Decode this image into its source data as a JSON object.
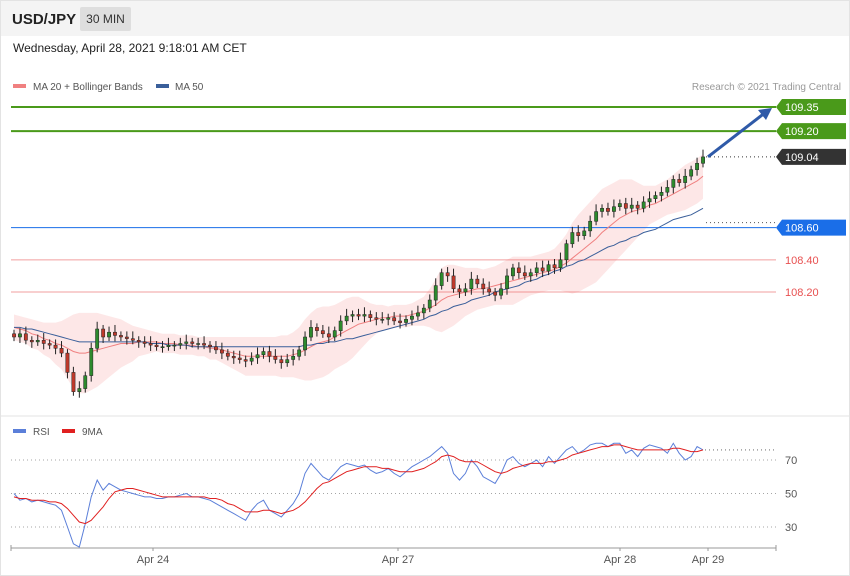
{
  "header": {
    "pair": "USD/JPY",
    "timeframe": "30 MIN",
    "datetime": "Wednesday, April 28, 2021 9:18:01 AM CET"
  },
  "legend": {
    "ma20_label": "MA 20 + Bollinger Bands",
    "ma50_label": "MA 50",
    "copyright": "Research © 2021 Trading Central",
    "ma20_color": "#f08080",
    "ma50_color": "#3a5f9a"
  },
  "rsi_legend": {
    "rsi_label": "RSI",
    "ma_label": "9MA",
    "rsi_color": "#5b7fd9",
    "ma_color": "#e02020"
  },
  "colors": {
    "up": "#2d8a2d",
    "down": "#c0392b",
    "resistance": "#4a9a1a",
    "support": "#e85050",
    "pivot": "#1a6ee8",
    "current": "#333333"
  },
  "chart_data": [
    {
      "type": "candlestick",
      "x_labels": [
        "Apr 24",
        "Apr 27",
        "Apr 28",
        "Apr 29"
      ],
      "ylim": [
        107.8,
        109.45
      ],
      "levels": [
        {
          "value": 109.35,
          "label": "109.35",
          "kind": "resistance"
        },
        {
          "value": 109.2,
          "label": "109.20",
          "kind": "resistance"
        },
        {
          "value": 109.04,
          "label": "109.04",
          "kind": "current"
        },
        {
          "value": 108.6,
          "label": "108.60",
          "kind": "pivot"
        },
        {
          "value": 108.4,
          "label": "108.40",
          "kind": "support"
        },
        {
          "value": 108.2,
          "label": "108.20",
          "kind": "support"
        }
      ],
      "close": [
        107.92,
        107.94,
        107.9,
        107.89,
        107.9,
        107.88,
        107.87,
        107.85,
        107.82,
        107.7,
        107.58,
        107.6,
        107.68,
        107.85,
        107.97,
        107.92,
        107.95,
        107.93,
        107.92,
        107.91,
        107.9,
        107.89,
        107.88,
        107.87,
        107.86,
        107.86,
        107.87,
        107.87,
        107.88,
        107.89,
        107.88,
        107.88,
        107.87,
        107.86,
        107.84,
        107.82,
        107.8,
        107.79,
        107.78,
        107.77,
        107.79,
        107.81,
        107.83,
        107.8,
        107.78,
        107.76,
        107.78,
        107.8,
        107.84,
        107.92,
        107.98,
        107.96,
        107.94,
        107.92,
        107.96,
        108.02,
        108.05,
        108.06,
        108.05,
        108.06,
        108.04,
        108.03,
        108.03,
        108.04,
        108.02,
        108.01,
        108.03,
        108.05,
        108.07,
        108.1,
        108.15,
        108.24,
        108.32,
        108.3,
        108.22,
        108.2,
        108.22,
        108.28,
        108.25,
        108.22,
        108.2,
        108.18,
        108.22,
        108.3,
        108.35,
        108.32,
        108.3,
        108.32,
        108.35,
        108.33,
        108.37,
        108.35,
        108.4,
        108.5,
        108.57,
        108.55,
        108.58,
        108.64,
        108.7,
        108.72,
        108.7,
        108.73,
        108.75,
        108.72,
        108.74,
        108.72,
        108.76,
        108.78,
        108.8,
        108.82,
        108.85,
        108.9,
        108.88,
        108.92,
        108.96,
        109.0,
        109.04
      ],
      "ma20": [
        107.98,
        107.97,
        107.96,
        107.94,
        107.93,
        107.91,
        107.9,
        107.88,
        107.87,
        107.85,
        107.83,
        107.82,
        107.82,
        107.83,
        107.84,
        107.85,
        107.86,
        107.87,
        107.88,
        107.88,
        107.88,
        107.89,
        107.89,
        107.89,
        107.89,
        107.88,
        107.88,
        107.88,
        107.87,
        107.87,
        107.87,
        107.86,
        107.86,
        107.85,
        107.85,
        107.84,
        107.83,
        107.82,
        107.81,
        107.8,
        107.8,
        107.8,
        107.8,
        107.8,
        107.8,
        107.8,
        107.8,
        107.81,
        107.82,
        107.84,
        107.86,
        107.88,
        107.89,
        107.9,
        107.92,
        107.94,
        107.96,
        107.98,
        108.0,
        108.01,
        108.02,
        108.03,
        108.04,
        108.04,
        108.05,
        108.05,
        108.05,
        108.06,
        108.07,
        108.08,
        108.1,
        108.12,
        108.15,
        108.17,
        108.18,
        108.19,
        108.2,
        108.21,
        108.22,
        108.22,
        108.23,
        108.24,
        108.25,
        108.26,
        108.27,
        108.28,
        108.29,
        108.3,
        108.31,
        108.32,
        108.33,
        108.34,
        108.36,
        108.38,
        108.41,
        108.44,
        108.47,
        108.5,
        108.53,
        108.57,
        108.6,
        108.63,
        108.66,
        108.68,
        108.7,
        108.71,
        108.72,
        108.74,
        108.75,
        108.77,
        108.79,
        108.81,
        108.83,
        108.85,
        108.87,
        108.89,
        108.92
      ],
      "ma50": [
        107.98,
        107.98,
        107.97,
        107.97,
        107.96,
        107.95,
        107.94,
        107.93,
        107.92,
        107.91,
        107.9,
        107.89,
        107.89,
        107.89,
        107.89,
        107.89,
        107.89,
        107.89,
        107.89,
        107.89,
        107.89,
        107.89,
        107.89,
        107.88,
        107.88,
        107.88,
        107.87,
        107.87,
        107.87,
        107.87,
        107.86,
        107.86,
        107.86,
        107.86,
        107.86,
        107.86,
        107.86,
        107.86,
        107.86,
        107.86,
        107.86,
        107.86,
        107.86,
        107.86,
        107.86,
        107.86,
        107.86,
        107.86,
        107.86,
        107.87,
        107.87,
        107.88,
        107.88,
        107.89,
        107.89,
        107.9,
        107.91,
        107.91,
        107.92,
        107.93,
        107.94,
        107.95,
        107.96,
        107.97,
        107.98,
        107.99,
        108.0,
        108.01,
        108.02,
        108.03,
        108.05,
        108.06,
        108.08,
        108.09,
        108.11,
        108.12,
        108.13,
        108.15,
        108.16,
        108.17,
        108.18,
        108.2,
        108.21,
        108.22,
        108.23,
        108.24,
        108.26,
        108.27,
        108.28,
        108.3,
        108.31,
        108.33,
        108.34,
        108.36,
        108.37,
        108.39,
        108.4,
        108.42,
        108.44,
        108.46,
        108.48,
        108.49,
        108.51,
        108.52,
        108.54,
        108.55,
        108.57,
        108.58,
        108.59,
        108.61,
        108.63,
        108.65,
        108.66,
        108.67,
        108.68,
        108.7,
        108.72
      ],
      "band_width": [
        0.08,
        0.08,
        0.08,
        0.09,
        0.09,
        0.1,
        0.11,
        0.13,
        0.15,
        0.19,
        0.23,
        0.25,
        0.25,
        0.24,
        0.23,
        0.21,
        0.19,
        0.17,
        0.15,
        0.13,
        0.11,
        0.09,
        0.08,
        0.07,
        0.06,
        0.06,
        0.06,
        0.06,
        0.06,
        0.06,
        0.06,
        0.06,
        0.06,
        0.07,
        0.07,
        0.08,
        0.09,
        0.1,
        0.11,
        0.12,
        0.12,
        0.12,
        0.12,
        0.12,
        0.12,
        0.13,
        0.13,
        0.14,
        0.16,
        0.19,
        0.21,
        0.22,
        0.22,
        0.21,
        0.2,
        0.2,
        0.2,
        0.19,
        0.17,
        0.14,
        0.11,
        0.09,
        0.08,
        0.07,
        0.07,
        0.07,
        0.07,
        0.07,
        0.08,
        0.09,
        0.12,
        0.16,
        0.2,
        0.2,
        0.19,
        0.17,
        0.15,
        0.14,
        0.13,
        0.12,
        0.12,
        0.12,
        0.13,
        0.14,
        0.15,
        0.14,
        0.13,
        0.12,
        0.12,
        0.12,
        0.12,
        0.13,
        0.15,
        0.18,
        0.22,
        0.24,
        0.25,
        0.26,
        0.27,
        0.27,
        0.26,
        0.25,
        0.24,
        0.22,
        0.2,
        0.17,
        0.14,
        0.12,
        0.11,
        0.11,
        0.11,
        0.12,
        0.13,
        0.14,
        0.14,
        0.14,
        0.14
      ]
    },
    {
      "type": "line",
      "title": "RSI",
      "yticks": [
        30,
        50,
        70
      ],
      "ylim": [
        10,
        85
      ],
      "rsi": [
        50,
        46,
        47,
        45,
        46,
        45,
        44,
        43,
        40,
        30,
        20,
        18,
        32,
        48,
        58,
        52,
        56,
        54,
        52,
        51,
        50,
        49,
        48,
        48,
        47,
        47,
        48,
        48,
        49,
        50,
        48,
        48,
        47,
        46,
        44,
        42,
        40,
        38,
        36,
        34,
        40,
        44,
        46,
        40,
        38,
        36,
        40,
        44,
        50,
        62,
        68,
        64,
        60,
        58,
        62,
        66,
        68,
        67,
        66,
        67,
        64,
        62,
        63,
        65,
        62,
        60,
        63,
        66,
        68,
        70,
        72,
        75,
        78,
        74,
        62,
        58,
        62,
        70,
        66,
        60,
        58,
        56,
        62,
        70,
        72,
        68,
        66,
        68,
        70,
        66,
        72,
        68,
        72,
        76,
        78,
        74,
        76,
        79,
        80,
        80,
        78,
        80,
        80,
        74,
        76,
        72,
        77,
        79,
        78,
        77,
        74,
        80,
        74,
        70,
        72,
        78,
        76
      ],
      "ma9": [
        48,
        47,
        47,
        46,
        46,
        46,
        45,
        45,
        44,
        41,
        37,
        33,
        32,
        34,
        38,
        42,
        47,
        51,
        52,
        53,
        53,
        52,
        51,
        50,
        49,
        48,
        48,
        48,
        48,
        48,
        48,
        48,
        48,
        47,
        47,
        46,
        44,
        43,
        41,
        39,
        39,
        39,
        40,
        40,
        39,
        38,
        39,
        40,
        42,
        45,
        49,
        53,
        56,
        57,
        59,
        61,
        63,
        64,
        65,
        66,
        66,
        66,
        65,
        65,
        64,
        63,
        63,
        63,
        64,
        65,
        67,
        69,
        72,
        73,
        72,
        70,
        69,
        69,
        69,
        67,
        65,
        63,
        62,
        63,
        65,
        66,
        67,
        68,
        68,
        68,
        69,
        69,
        70,
        71,
        73,
        74,
        75,
        76,
        77,
        78,
        78,
        79,
        79,
        78,
        77,
        76,
        76,
        76,
        76,
        76,
        76,
        77,
        77,
        76,
        75,
        75,
        76
      ]
    }
  ]
}
